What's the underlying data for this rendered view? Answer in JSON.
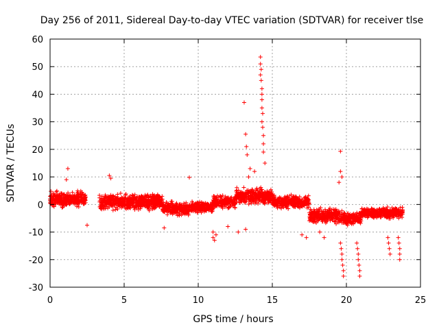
{
  "chart_data": {
    "type": "scatter",
    "title": "Day 256 of 2011, Sidereal Day-to-day VTEC variation (SDTVAR) for receiver tlse",
    "xlabel": "GPS time / hours",
    "ylabel": "SDTVAR / TECUs",
    "xlim": [
      0,
      25
    ],
    "ylim": [
      -30,
      60
    ],
    "xticks": [
      "0",
      "5",
      "10",
      "15",
      "20",
      "25"
    ],
    "yticks": [
      "-30",
      "-20",
      "-10",
      "0",
      "10",
      "20",
      "30",
      "40",
      "50",
      "60"
    ],
    "grid": true,
    "marker": "plus",
    "color": "#ff0000",
    "segments": [
      {
        "x0": 0.0,
        "x1": 2.4,
        "center": 2.0,
        "spread": 3.5
      },
      {
        "x0": 3.3,
        "x1": 7.6,
        "center": 1.0,
        "spread": 3.5
      },
      {
        "x0": 7.6,
        "x1": 9.5,
        "center": -1.5,
        "spread": 3.0
      },
      {
        "x0": 9.5,
        "x1": 11.0,
        "center": -1.0,
        "spread": 2.5
      },
      {
        "x0": 11.0,
        "x1": 12.5,
        "center": 1.0,
        "spread": 3.0
      },
      {
        "x0": 12.5,
        "x1": 15.0,
        "center": 3.0,
        "spread": 3.5
      },
      {
        "x0": 15.0,
        "x1": 17.5,
        "center": 1.0,
        "spread": 3.0
      },
      {
        "x0": 17.5,
        "x1": 19.5,
        "center": -4.0,
        "spread": 3.5
      },
      {
        "x0": 19.5,
        "x1": 21.0,
        "center": -5.0,
        "spread": 3.0
      },
      {
        "x0": 21.0,
        "x1": 23.8,
        "center": -3.0,
        "spread": 2.5
      }
    ],
    "outliers": [
      {
        "x": 14.2,
        "y": 53.5
      },
      {
        "x": 14.2,
        "y": 51
      },
      {
        "x": 14.25,
        "y": 49
      },
      {
        "x": 14.2,
        "y": 47
      },
      {
        "x": 14.25,
        "y": 45
      },
      {
        "x": 14.3,
        "y": 42
      },
      {
        "x": 14.3,
        "y": 40
      },
      {
        "x": 14.3,
        "y": 38
      },
      {
        "x": 14.3,
        "y": 35
      },
      {
        "x": 14.35,
        "y": 33
      },
      {
        "x": 14.3,
        "y": 30
      },
      {
        "x": 14.35,
        "y": 28
      },
      {
        "x": 14.4,
        "y": 25
      },
      {
        "x": 14.4,
        "y": 22
      },
      {
        "x": 14.4,
        "y": 19
      },
      {
        "x": 14.5,
        "y": 15
      },
      {
        "x": 13.1,
        "y": 37
      },
      {
        "x": 13.2,
        "y": 25.5
      },
      {
        "x": 13.25,
        "y": 21
      },
      {
        "x": 13.3,
        "y": 18
      },
      {
        "x": 13.5,
        "y": 13
      },
      {
        "x": 13.8,
        "y": 12
      },
      {
        "x": 13.4,
        "y": 10
      },
      {
        "x": 19.6,
        "y": 19.3
      },
      {
        "x": 19.6,
        "y": 12
      },
      {
        "x": 19.7,
        "y": 10
      },
      {
        "x": 19.5,
        "y": 8
      },
      {
        "x": 1.2,
        "y": 13
      },
      {
        "x": 1.1,
        "y": 9
      },
      {
        "x": 4.0,
        "y": 10.5
      },
      {
        "x": 4.1,
        "y": 9.5
      },
      {
        "x": 9.4,
        "y": 9.8
      },
      {
        "x": 7.7,
        "y": -8.5
      },
      {
        "x": 2.5,
        "y": -7.5
      },
      {
        "x": 11.0,
        "y": -10
      },
      {
        "x": 11.0,
        "y": -12
      },
      {
        "x": 11.1,
        "y": -13
      },
      {
        "x": 11.2,
        "y": -11
      },
      {
        "x": 12.0,
        "y": -8
      },
      {
        "x": 12.7,
        "y": -10
      },
      {
        "x": 13.2,
        "y": -9
      },
      {
        "x": 17.0,
        "y": -11
      },
      {
        "x": 17.3,
        "y": -12
      },
      {
        "x": 18.2,
        "y": -10
      },
      {
        "x": 18.5,
        "y": -12
      },
      {
        "x": 19.6,
        "y": -14
      },
      {
        "x": 19.65,
        "y": -16
      },
      {
        "x": 19.7,
        "y": -18
      },
      {
        "x": 19.7,
        "y": -20
      },
      {
        "x": 19.75,
        "y": -22
      },
      {
        "x": 19.8,
        "y": -24
      },
      {
        "x": 19.8,
        "y": -26
      },
      {
        "x": 20.7,
        "y": -14
      },
      {
        "x": 20.75,
        "y": -16
      },
      {
        "x": 20.8,
        "y": -18
      },
      {
        "x": 20.8,
        "y": -20
      },
      {
        "x": 20.85,
        "y": -22
      },
      {
        "x": 20.9,
        "y": -24
      },
      {
        "x": 20.9,
        "y": -26
      },
      {
        "x": 22.8,
        "y": -12
      },
      {
        "x": 22.85,
        "y": -14
      },
      {
        "x": 22.9,
        "y": -16
      },
      {
        "x": 22.95,
        "y": -18
      },
      {
        "x": 23.5,
        "y": -12
      },
      {
        "x": 23.55,
        "y": -14
      },
      {
        "x": 23.6,
        "y": -16
      },
      {
        "x": 23.6,
        "y": -18
      },
      {
        "x": 23.6,
        "y": -20
      }
    ]
  }
}
